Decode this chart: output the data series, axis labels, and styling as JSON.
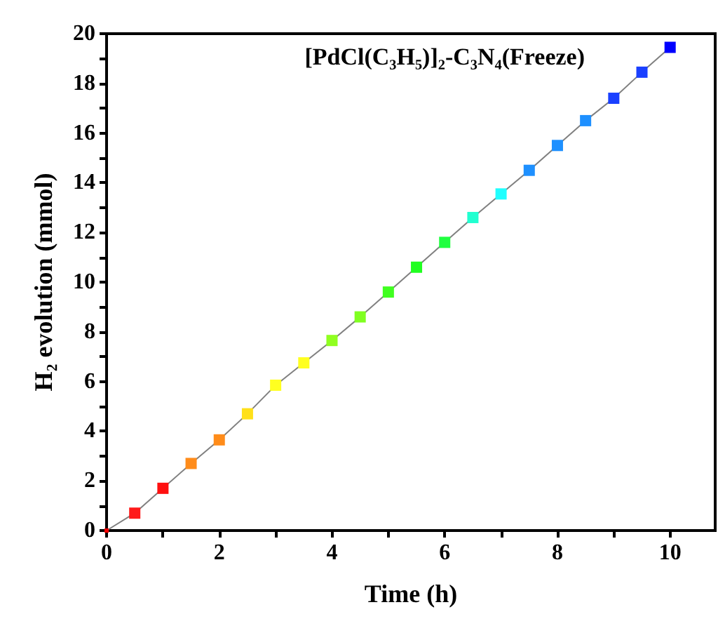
{
  "chart_data": {
    "type": "line",
    "xlabel": "Time (h)",
    "ylabel": "H₂ evolution (mmol)",
    "x": [
      0,
      0.5,
      1,
      1.5,
      2,
      2.5,
      3,
      3.5,
      4,
      4.5,
      5,
      5.5,
      6,
      6.5,
      7,
      7.5,
      8,
      8.5,
      9,
      9.5,
      10
    ],
    "series": [
      {
        "color": "#808080",
        "colors": [
          "#ff0000",
          "#ff1a1a",
          "#ff1010",
          "#ff8c1a",
          "#ff8c1a",
          "#ffe01a",
          "#ffff20",
          "#ffff20",
          "#90ff20",
          "#80ff20",
          "#40ff20",
          "#20ff20",
          "#20ff40",
          "#20ffd0",
          "#20ffff",
          "#1e90ff",
          "#1e90ff",
          "#1e90ff",
          "#1a40ff",
          "#1a40ff",
          "#0000ff"
        ],
        "values": [
          0,
          0.7,
          1.7,
          2.7,
          3.65,
          4.7,
          5.85,
          6.75,
          7.65,
          8.6,
          9.6,
          10.6,
          11.6,
          12.6,
          13.55,
          14.5,
          15.5,
          16.5,
          17.4,
          18.45,
          19.45
        ]
      }
    ],
    "annotations": [
      "[PdCl(C₃H₅)]₂-C₃N₄(Freeze)"
    ],
    "xlim": [
      0,
      10.8
    ],
    "xticks": [
      0,
      {
        "value": 1,
        "label": null
      },
      2,
      {
        "value": 3,
        "label": null
      },
      4,
      {
        "value": 5,
        "label": null
      },
      6,
      {
        "value": 7,
        "label": null
      },
      8,
      {
        "value": 9,
        "label": null
      },
      10
    ],
    "ylim": [
      0,
      20
    ],
    "yticks": [
      0,
      {
        "value": 1,
        "label": null
      },
      2,
      {
        "value": 3,
        "label": null
      },
      4,
      {
        "value": 5,
        "label": null
      },
      6,
      {
        "value": 7,
        "label": null
      },
      8,
      {
        "value": 9,
        "label": null
      },
      10,
      {
        "value": 11,
        "label": null
      },
      12,
      {
        "value": 13,
        "label": null
      },
      14,
      {
        "value": 15,
        "label": null
      },
      16,
      {
        "value": 17,
        "label": null
      },
      18,
      {
        "value": 19,
        "label": null
      },
      20
    ],
    "marker": "square",
    "line_style": "solid"
  }
}
